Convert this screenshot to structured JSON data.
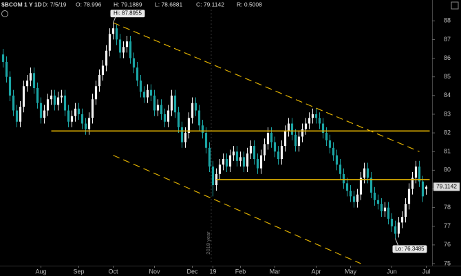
{
  "chart_data": {
    "type": "candlestick",
    "header": {
      "symbol": "$BCOM 1 Y 1D",
      "date": "D: 7/5/19",
      "open": "O: 78.996",
      "high": "H: 79.1889",
      "low": "L: 78.6881",
      "close": "C: 79.1142",
      "range": "R: 0.5008"
    },
    "up_color": "#f2f2f2",
    "down_color": "#1ba5a5",
    "line_color": "#e0b000",
    "ylim": [
      75,
      88.6
    ],
    "yticks": [
      75,
      76,
      77,
      78,
      79,
      80,
      81,
      82,
      83,
      84,
      85,
      86,
      87,
      88
    ],
    "xlim": [
      0,
      124
    ],
    "xticks": [
      {
        "value": 11,
        "label": "Aug"
      },
      {
        "value": 22,
        "label": "Sep"
      },
      {
        "value": 32,
        "label": "Oct"
      },
      {
        "value": 44,
        "label": "Nov"
      },
      {
        "value": 55,
        "label": "Dec"
      },
      {
        "value": 61,
        "label": "19"
      },
      {
        "value": 69,
        "label": "Feb"
      },
      {
        "value": 79,
        "label": "Mar"
      },
      {
        "value": 91,
        "label": "Apr"
      },
      {
        "value": 101,
        "label": "May"
      },
      {
        "value": 113,
        "label": "Jun"
      },
      {
        "value": 123,
        "label": "Jul"
      }
    ],
    "year_marker": {
      "value": 60.5,
      "label": "2018 year"
    },
    "candles": [
      [
        86.2,
        86.5,
        85.5,
        85.8
      ],
      [
        85.8,
        86.1,
        84.7,
        85.0
      ],
      [
        85.0,
        85.3,
        83.7,
        84.0
      ],
      [
        84.0,
        84.3,
        82.9,
        83.2
      ],
      [
        83.2,
        83.5,
        82.3,
        82.6
      ],
      [
        82.6,
        83.7,
        82.3,
        83.4
      ],
      [
        83.4,
        84.8,
        83.1,
        84.5
      ],
      [
        84.5,
        85.1,
        84.2,
        84.8
      ],
      [
        84.8,
        85.5,
        84.5,
        85.2
      ],
      [
        85.2,
        85.5,
        84.1,
        84.4
      ],
      [
        84.4,
        84.7,
        83.3,
        83.6
      ],
      [
        83.6,
        83.9,
        82.5,
        82.8
      ],
      [
        82.8,
        83.5,
        82.5,
        83.2
      ],
      [
        83.2,
        84.1,
        82.9,
        83.8
      ],
      [
        83.8,
        84.3,
        83.5,
        84.0
      ],
      [
        84.0,
        84.3,
        83.2,
        83.5
      ],
      [
        83.5,
        84.2,
        83.2,
        83.9
      ],
      [
        83.9,
        84.3,
        83.6,
        84.0
      ],
      [
        84.0,
        84.3,
        82.9,
        83.2
      ],
      [
        83.2,
        83.5,
        82.3,
        82.6
      ],
      [
        82.6,
        83.2,
        82.3,
        82.9
      ],
      [
        82.9,
        83.6,
        82.6,
        83.3
      ],
      [
        83.3,
        83.6,
        82.7,
        83.0
      ],
      [
        83.0,
        83.3,
        82.2,
        82.5
      ],
      [
        82.5,
        82.8,
        81.9,
        82.2
      ],
      [
        82.2,
        83.1,
        81.9,
        82.8
      ],
      [
        82.8,
        84.1,
        82.5,
        83.8
      ],
      [
        83.8,
        84.8,
        83.5,
        84.5
      ],
      [
        84.5,
        85.4,
        84.2,
        85.1
      ],
      [
        85.1,
        85.9,
        84.8,
        85.6
      ],
      [
        85.6,
        86.7,
        85.3,
        86.4
      ],
      [
        86.4,
        87.6,
        86.1,
        87.3
      ],
      [
        87.3,
        87.8955,
        87.0,
        87.6
      ],
      [
        87.6,
        87.8,
        86.7,
        87.0
      ],
      [
        87.0,
        87.3,
        86.0,
        86.3
      ],
      [
        86.3,
        86.9,
        86.0,
        86.6
      ],
      [
        86.6,
        87.2,
        86.3,
        86.9
      ],
      [
        86.9,
        87.2,
        85.7,
        86.0
      ],
      [
        86.0,
        86.3,
        85.2,
        85.5
      ],
      [
        85.5,
        85.8,
        84.5,
        84.8
      ],
      [
        84.8,
        85.1,
        83.9,
        84.2
      ],
      [
        84.2,
        84.5,
        83.6,
        83.9
      ],
      [
        83.9,
        84.6,
        83.6,
        84.3
      ],
      [
        84.3,
        84.6,
        83.7,
        84.0
      ],
      [
        84.0,
        84.3,
        82.9,
        83.2
      ],
      [
        83.2,
        83.8,
        82.9,
        83.5
      ],
      [
        83.5,
        83.8,
        82.7,
        83.0
      ],
      [
        83.0,
        83.3,
        82.3,
        82.6
      ],
      [
        82.6,
        83.5,
        82.3,
        83.2
      ],
      [
        83.2,
        84.3,
        82.9,
        84.0
      ],
      [
        84.0,
        84.3,
        82.8,
        83.1
      ],
      [
        83.1,
        83.4,
        82.0,
        82.3
      ],
      [
        82.3,
        82.6,
        81.2,
        81.5
      ],
      [
        81.5,
        82.3,
        81.2,
        82.0
      ],
      [
        82.0,
        83.1,
        81.7,
        82.8
      ],
      [
        82.8,
        83.9,
        82.5,
        83.6
      ],
      [
        83.6,
        83.9,
        82.9,
        83.2
      ],
      [
        83.2,
        83.5,
        82.1,
        82.4
      ],
      [
        82.4,
        82.7,
        81.7,
        82.0
      ],
      [
        82.0,
        82.3,
        80.9,
        81.2
      ],
      [
        81.2,
        81.5,
        79.9,
        80.2
      ],
      [
        80.2,
        80.5,
        78.6,
        79.2
      ],
      [
        79.2,
        80.1,
        78.9,
        79.8
      ],
      [
        79.8,
        80.6,
        79.5,
        80.3
      ],
      [
        80.3,
        80.9,
        80.0,
        80.6
      ],
      [
        80.6,
        80.9,
        79.9,
        80.2
      ],
      [
        80.2,
        81.1,
        79.9,
        80.8
      ],
      [
        80.8,
        81.3,
        80.5,
        81.0
      ],
      [
        81.0,
        81.3,
        80.2,
        80.5
      ],
      [
        80.5,
        81.0,
        80.2,
        80.7
      ],
      [
        80.7,
        81.0,
        79.9,
        80.2
      ],
      [
        80.2,
        81.2,
        79.9,
        80.9
      ],
      [
        80.9,
        81.6,
        80.6,
        81.3
      ],
      [
        81.3,
        81.6,
        80.3,
        80.6
      ],
      [
        80.6,
        80.9,
        79.8,
        80.1
      ],
      [
        80.1,
        81.1,
        79.8,
        80.8
      ],
      [
        80.8,
        81.7,
        80.5,
        81.4
      ],
      [
        81.4,
        82.3,
        81.1,
        82.0
      ],
      [
        82.0,
        82.3,
        81.2,
        81.5
      ],
      [
        81.5,
        81.8,
        80.7,
        81.0
      ],
      [
        81.0,
        81.3,
        80.3,
        80.6
      ],
      [
        80.6,
        81.6,
        80.3,
        81.3
      ],
      [
        81.3,
        82.4,
        81.0,
        82.1
      ],
      [
        82.1,
        82.8,
        81.8,
        82.5
      ],
      [
        82.5,
        82.8,
        81.6,
        81.9
      ],
      [
        81.9,
        82.2,
        81.0,
        81.3
      ],
      [
        81.3,
        82.1,
        81.0,
        81.8
      ],
      [
        81.8,
        82.5,
        81.5,
        82.2
      ],
      [
        82.2,
        82.8,
        81.9,
        82.5
      ],
      [
        82.5,
        83.1,
        82.2,
        82.8
      ],
      [
        82.8,
        83.3,
        82.5,
        83.0
      ],
      [
        83.0,
        83.3,
        82.5,
        82.8
      ],
      [
        82.8,
        83.1,
        82.2,
        82.5
      ],
      [
        82.5,
        82.8,
        81.7,
        82.0
      ],
      [
        82.0,
        82.3,
        81.3,
        81.6
      ],
      [
        81.6,
        81.9,
        80.9,
        81.2
      ],
      [
        81.2,
        81.5,
        80.5,
        80.8
      ],
      [
        80.8,
        81.1,
        80.0,
        80.3
      ],
      [
        80.3,
        80.6,
        79.5,
        79.8
      ],
      [
        79.8,
        80.1,
        79.0,
        79.3
      ],
      [
        79.3,
        79.6,
        78.6,
        78.9
      ],
      [
        78.9,
        79.2,
        78.3,
        78.6
      ],
      [
        78.6,
        78.9,
        78.0,
        78.3
      ],
      [
        78.3,
        79.0,
        78.0,
        78.7
      ],
      [
        78.7,
        79.9,
        78.4,
        79.6
      ],
      [
        79.6,
        80.4,
        79.3,
        80.1
      ],
      [
        80.1,
        80.4,
        79.3,
        79.6
      ],
      [
        79.6,
        79.9,
        78.5,
        78.8
      ],
      [
        78.8,
        79.1,
        78.1,
        78.4
      ],
      [
        78.4,
        78.7,
        77.9,
        78.2
      ],
      [
        78.2,
        78.5,
        77.5,
        77.8
      ],
      [
        77.8,
        78.3,
        77.5,
        78.0
      ],
      [
        78.0,
        78.3,
        77.1,
        77.4
      ],
      [
        77.4,
        77.7,
        76.7,
        77.0
      ],
      [
        77.0,
        77.3,
        76.3485,
        76.6
      ],
      [
        76.6,
        77.5,
        76.4,
        77.2
      ],
      [
        77.2,
        77.8,
        76.9,
        77.5
      ],
      [
        77.5,
        78.5,
        77.2,
        78.2
      ],
      [
        78.2,
        79.3,
        77.9,
        79.0
      ],
      [
        79.0,
        79.9,
        78.7,
        79.6
      ],
      [
        79.6,
        80.5,
        79.3,
        80.2
      ],
      [
        80.2,
        80.5,
        79.1,
        79.4
      ],
      [
        79.4,
        79.7,
        78.3,
        78.6
      ],
      [
        78.996,
        79.1889,
        78.6881,
        79.1142
      ]
    ],
    "lines": [
      {
        "x1": 32,
        "y1": 87.9,
        "x2": 121,
        "y2": 81.0,
        "dashed": true
      },
      {
        "x1": 32,
        "y1": 80.8,
        "x2": 104,
        "y2": 75.0,
        "dashed": true
      },
      {
        "x1": 14,
        "y1": 82.1,
        "x2": 124,
        "y2": 82.1,
        "dashed": false
      },
      {
        "x1": 62,
        "y1": 79.5,
        "x2": 124,
        "y2": 79.5,
        "dashed": false
      }
    ],
    "hi": {
      "index": 32,
      "value": 87.8955,
      "label": "Hi: 87.8955"
    },
    "lo": {
      "index": 114,
      "value": 76.3485,
      "label": "Lo: 76.3485"
    },
    "last_price": 79.1142
  }
}
